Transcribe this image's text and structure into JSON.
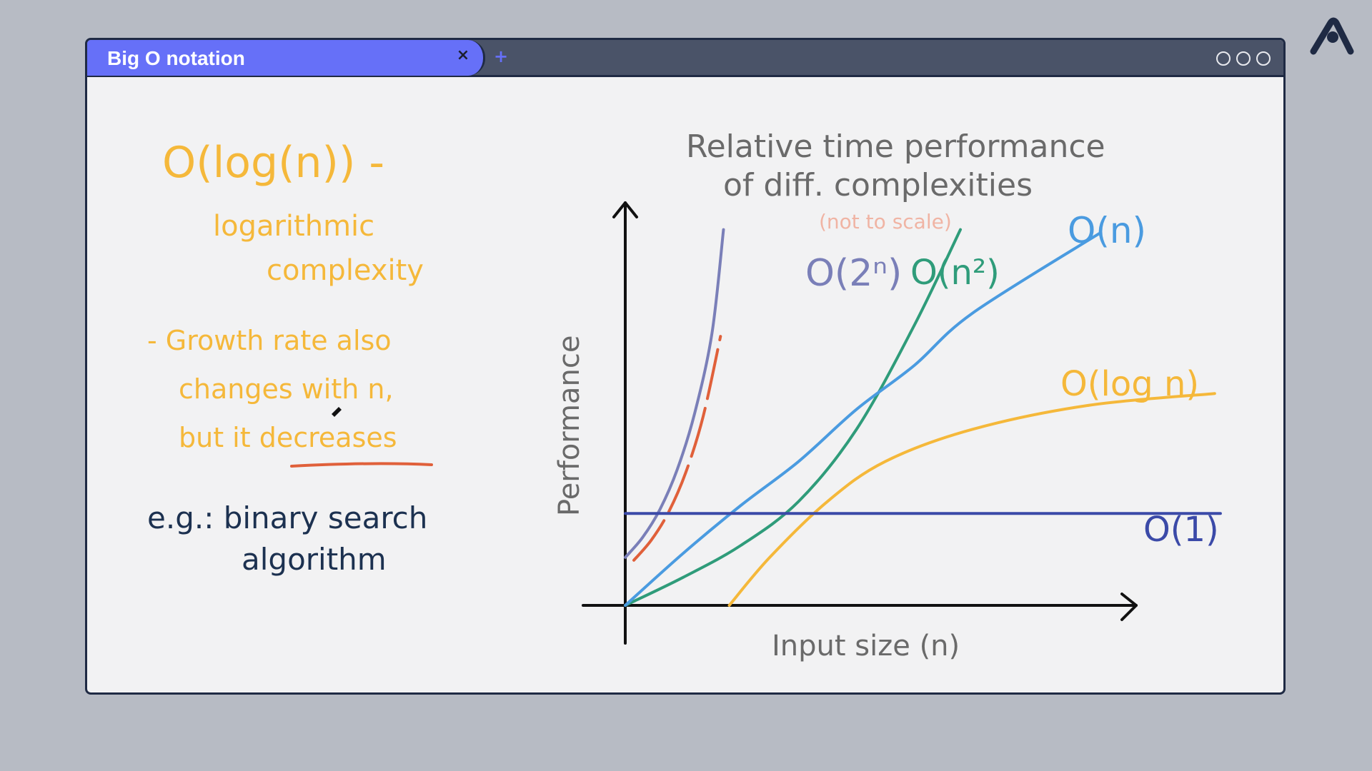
{
  "window": {
    "tab_title": "Big O notation",
    "close_glyph": "×",
    "new_tab_glyph": "+",
    "controls": [
      "circle",
      "circle",
      "circle"
    ]
  },
  "logo": {
    "icon": "brand-logo-icon",
    "color": "#1f2a44"
  },
  "notes": {
    "heading_line1": "O(log(n)) -",
    "heading_line2": "logarithmic",
    "heading_line3": "complexity",
    "bullet_line1": "- Growth rate also",
    "bullet_line2": "changes with n,",
    "bullet_line3": "but it decreases",
    "example_line1": "e.g.: binary search",
    "example_line2": "algorithm",
    "colors": {
      "yellow": "#f5b83a",
      "navy": "#1c3150",
      "underline": "#e0603a"
    }
  },
  "chart_data": {
    "type": "line",
    "title": "Relative time performance of diff. complexities",
    "title_line1": "Relative time performance",
    "title_line2": "of diff. complexities",
    "subtitle": "(not to scale)",
    "xlabel": "Input size (n)",
    "ylabel": "Performance",
    "series": [
      {
        "name": "O(2^n)",
        "label": "O(2ⁿ)",
        "color": "#7a7fb8",
        "overlay_color": "#e0603a",
        "x": [
          0,
          0.3,
          0.6,
          0.9,
          1.2,
          1.5,
          1.7
        ],
        "y": [
          1.2,
          1.7,
          2.4,
          3.4,
          4.8,
          6.8,
          9.4
        ]
      },
      {
        "name": "O(n^2)",
        "label": "O(n²)",
        "color": "#2f9c7a",
        "x": [
          0,
          1,
          2,
          3,
          4,
          5,
          5.8
        ],
        "y": [
          0,
          0.7,
          1.5,
          2.6,
          4.4,
          7.0,
          9.4
        ]
      },
      {
        "name": "O(n)",
        "label": "O(n)",
        "color": "#4a9be0",
        "x": [
          0,
          1,
          2,
          3,
          4,
          5,
          6,
          8.2
        ],
        "y": [
          0,
          1.3,
          2.5,
          3.6,
          4.9,
          6.0,
          7.3,
          9.3
        ]
      },
      {
        "name": "O(log n)",
        "label": "O(log n)",
        "color": "#f5b83a",
        "x": [
          1.8,
          2.5,
          3.5,
          4.5,
          6,
          8,
          10.2
        ],
        "y": [
          0,
          1.2,
          2.6,
          3.6,
          4.4,
          5.0,
          5.3
        ]
      },
      {
        "name": "O(1)",
        "label": "O(1)",
        "color": "#3b4aa8",
        "x": [
          0,
          10.3
        ],
        "y": [
          2.3,
          2.3
        ]
      }
    ],
    "xlim": [
      0,
      10.4
    ],
    "ylim": [
      0,
      10
    ],
    "grid": false,
    "legend": "inline-labels",
    "colors": {
      "axes": "#111111",
      "title": "#6a6a6a",
      "subtitle": "#f0b4a4"
    }
  }
}
